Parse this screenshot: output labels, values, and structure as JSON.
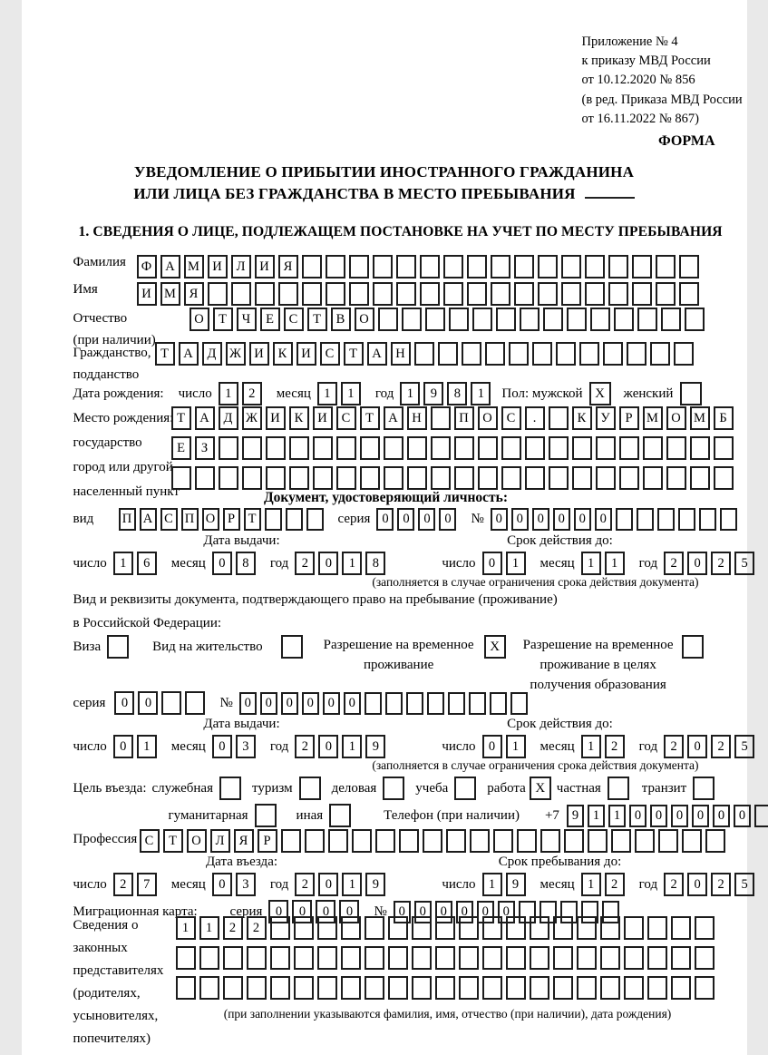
{
  "header": {
    "appendix_lines": [
      "Приложение № 4",
      "к приказу МВД России",
      "от 10.12.2020 № 856"
    ],
    "amendment_lines": [
      "(в ред. Приказа МВД России",
      "от 16.11.2022 № 867)"
    ],
    "form_label": "ФОРМА"
  },
  "title": {
    "line1": "УВЕДОМЛЕНИЕ О ПРИБЫТИИ ИНОСТРАННОГО ГРАЖДАНИНА",
    "line2": "ИЛИ ЛИЦА БЕЗ ГРАЖДАНСТВА В МЕСТО ПРЕБЫВАНИЯ"
  },
  "section1_heading": "1. СВЕДЕНИЯ О ЛИЦЕ, ПОДЛЕЖАЩЕМ ПОСТАНОВКЕ НА УЧЕТ ПО МЕСТУ ПРЕБЫВАНИЯ",
  "words": {
    "day": "число",
    "month": "месяц",
    "year": "год",
    "series": "серия",
    "number": "№"
  },
  "surname": {
    "label": "Фамилия",
    "cells": {
      "chars": "ФАМИЛИЯ",
      "count": 24
    }
  },
  "given_name": {
    "label": "Имя",
    "cells": {
      "chars": "ИМЯ",
      "count": 24
    }
  },
  "patronymic": {
    "label": "Отчество",
    "sublabel": "(при наличии)",
    "cells": {
      "chars": "ОТЧЕСТВО",
      "count": 22
    }
  },
  "citizenship": {
    "label": "Гражданство,",
    "sublabel": "подданство",
    "cells": {
      "chars": "ТАДЖИКИСТАН",
      "count": 23
    }
  },
  "birth_date": {
    "label": "Дата рождения:",
    "day": {
      "chars": "12",
      "count": 2
    },
    "month": {
      "chars": "11",
      "count": 2
    },
    "year": {
      "chars": "1981",
      "count": 4
    }
  },
  "sex": {
    "label": "Пол:",
    "male_label": "мужской",
    "male_mark": "X",
    "female_label": "женский",
    "female_mark": ""
  },
  "birth_place": {
    "labels": [
      "Место рождения:",
      "государство",
      "город или другой",
      "населенный пункт"
    ],
    "row1": {
      "cells": [
        "Т",
        "А",
        "Д",
        "Ж",
        "И",
        "К",
        "И",
        "С",
        "Т",
        "А",
        "Н",
        "",
        "П",
        "О",
        "С",
        ".",
        "",
        "К",
        "У",
        "Р",
        "М",
        "О",
        "М",
        "Б"
      ],
      "count": 24
    },
    "row2": {
      "chars": "ЕЗ",
      "count": 24
    },
    "row3": {
      "count": 24
    }
  },
  "identity_doc": {
    "heading": "Документ, удостоверяющий личность:",
    "kind_label": "вид",
    "kind": {
      "chars": "ПАСПОРТ",
      "count": 10
    },
    "series": {
      "chars": "0000",
      "count": 4
    },
    "number": {
      "chars": "000000",
      "count": 12
    },
    "issue_label": "Дата выдачи:",
    "valid_label": "Срок действия до:",
    "issue": {
      "day": {
        "chars": "16",
        "count": 2
      },
      "month": {
        "chars": "08",
        "count": 2
      },
      "year": {
        "chars": "2018",
        "count": 4
      }
    },
    "valid": {
      "day": {
        "chars": "01",
        "count": 2
      },
      "month": {
        "chars": "11",
        "count": 2
      },
      "year": {
        "chars": "2025",
        "count": 4
      }
    },
    "valid_note": "(заполняется в случае ограничения срока действия документа)"
  },
  "residence_doc": {
    "intro_line1": "Вид и реквизиты документа, подтверждающего право на пребывание (проживание)",
    "intro_line2": "в Российской Федерации:",
    "options": [
      {
        "label": "Виза",
        "mark": ""
      },
      {
        "label": "Вид на жительство",
        "mark": ""
      },
      {
        "label": "Разрешение на временное проживание",
        "mark": "X"
      },
      {
        "label": "Разрешение на временное проживание в целях получения образования",
        "mark": ""
      }
    ],
    "series": {
      "cells": [
        "0",
        "0",
        "",
        ""
      ],
      "count": 4
    },
    "number": {
      "chars": "000000",
      "count": 14
    },
    "issue_label": "Дата выдачи:",
    "valid_label": "Срок действия до:",
    "issue": {
      "day": {
        "chars": "01",
        "count": 2
      },
      "month": {
        "chars": "03",
        "count": 2
      },
      "year": {
        "chars": "2019",
        "count": 4
      }
    },
    "valid": {
      "day": {
        "chars": "01",
        "count": 2
      },
      "month": {
        "chars": "12",
        "count": 2
      },
      "year": {
        "chars": "2025",
        "count": 4
      }
    },
    "valid_note": "(заполняется в случае ограничения срока действия документа)"
  },
  "purpose": {
    "label": "Цель въезда:",
    "options_row1": [
      {
        "label": "служебная",
        "mark": ""
      },
      {
        "label": "туризм",
        "mark": ""
      },
      {
        "label": "деловая",
        "mark": ""
      },
      {
        "label": "учеба",
        "mark": ""
      },
      {
        "label": "работа",
        "mark": "X"
      },
      {
        "label": "частная",
        "mark": ""
      },
      {
        "label": "транзит",
        "mark": ""
      }
    ],
    "options_row2": [
      {
        "label": "гуманитарная",
        "mark": ""
      },
      {
        "label": "иная",
        "mark": ""
      }
    ]
  },
  "phone": {
    "label": "Телефон (при наличии)",
    "prefix": "+7",
    "cells": {
      "chars": "911000000",
      "count": 10
    }
  },
  "profession": {
    "label": "Профессия",
    "cells": {
      "chars": "СТОЛЯР",
      "count": 25
    }
  },
  "entry": {
    "date_label": "Дата въезда:",
    "stay_label": "Срок пребывания до:",
    "date": {
      "day": {
        "chars": "27",
        "count": 2
      },
      "month": {
        "chars": "03",
        "count": 2
      },
      "year": {
        "chars": "2019",
        "count": 4
      }
    },
    "stay": {
      "day": {
        "chars": "19",
        "count": 2
      },
      "month": {
        "chars": "12",
        "count": 2
      },
      "year": {
        "chars": "2025",
        "count": 4
      }
    }
  },
  "migration_card": {
    "label": "Миграционная карта:",
    "series": {
      "chars": "0000",
      "count": 4
    },
    "number": {
      "chars": "000000",
      "count": 11
    }
  },
  "representatives": {
    "labels": [
      "Сведения о",
      "законных",
      "представителях",
      "(родителях,",
      "усыновителях,",
      "попечителях)"
    ],
    "row1": {
      "chars": "1122",
      "count": 23
    },
    "row2": {
      "count": 23
    },
    "row3": {
      "count": 23
    },
    "note": "(при заполнении указываются фамилия, имя, отчество (при наличии), дата рождения)"
  }
}
